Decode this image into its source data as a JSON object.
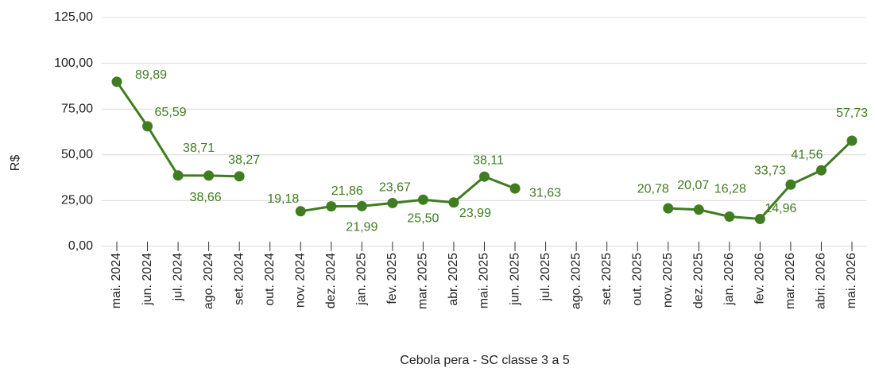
{
  "chart_data": {
    "type": "line",
    "x_label": "Cebola pera - SC classe 3 a 5",
    "y_label": "R$",
    "categories": [
      "mai. 2024",
      "jun. 2024",
      "jul. 2024",
      "ago. 2024",
      "set. 2024",
      "out. 2024",
      "nov. 2024",
      "dez. 2024",
      "jan. 2025",
      "fev. 2025",
      "mar. 2025",
      "abr. 2025",
      "mai. 2025",
      "jun. 2025",
      "jul. 2025",
      "ago. 2025",
      "set. 2025",
      "out. 2025",
      "nov. 2025",
      "dez. 2025",
      "jan. 2026",
      "fev. 2026",
      "mar. 2026",
      "abri. 2026",
      "mai. 2026"
    ],
    "series": [
      {
        "name": "Cebola pera - SC classe 3 a 5",
        "color": "#3f7d20",
        "values": [
          89.89,
          65.59,
          38.71,
          38.66,
          38.27,
          null,
          19.18,
          21.86,
          21.99,
          23.67,
          25.5,
          23.99,
          38.11,
          31.63,
          null,
          null,
          null,
          null,
          20.78,
          20.07,
          16.28,
          14.96,
          33.73,
          41.56,
          57.73
        ],
        "value_labels": [
          "89,89",
          "65,59",
          "38,71",
          "38,66",
          "38,27",
          null,
          "19,18",
          "21,86",
          "21,99",
          "23,67",
          "25,50",
          "23,99",
          "38,11",
          "31,63",
          null,
          null,
          null,
          null,
          "20,78",
          "20,07",
          "16,28",
          "14,96",
          "33,73",
          "41,56",
          "57,73"
        ]
      }
    ],
    "ylim": [
      0,
      125
    ],
    "yticks": [
      {
        "value": 0,
        "label": "0,00"
      },
      {
        "value": 25,
        "label": "25,00"
      },
      {
        "value": 50,
        "label": "50,00"
      },
      {
        "value": 75,
        "label": "75,00"
      },
      {
        "value": 100,
        "label": "100,00"
      },
      {
        "value": 125,
        "label": "125,00"
      }
    ],
    "grid": true
  }
}
